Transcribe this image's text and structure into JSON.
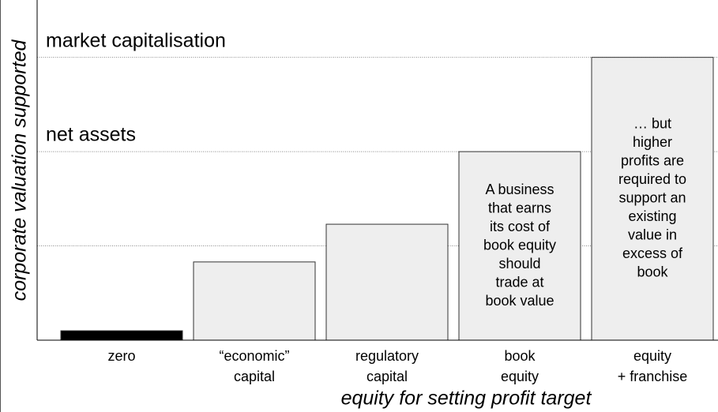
{
  "chart_data": {
    "type": "bar",
    "x_label": "equity for setting profit target",
    "y_label": "corporate valuation supported",
    "categories": [
      [
        "zero"
      ],
      [
        "“economic”",
        "capital"
      ],
      [
        "regulatory",
        "capital"
      ],
      [
        "book",
        "equity"
      ],
      [
        "equity",
        "+ franchise"
      ]
    ],
    "values": [
      0.1,
      0.83,
      1.23,
      2.0,
      3.0
    ],
    "colors": [
      "#000000",
      "#eeeeee",
      "#eeeeee",
      "#eeeeee",
      "#eeeeee"
    ],
    "bar_notes": [
      null,
      null,
      null,
      [
        "A business",
        "that earns",
        "its cost of",
        "book equity",
        "should",
        "trade at",
        "book value"
      ],
      [
        "… but",
        "higher",
        "profits are",
        "required to",
        "support an",
        "existing",
        "value in",
        "excess of",
        "book"
      ]
    ],
    "reference_lines": [
      {
        "value": 1
      },
      {
        "value": 2,
        "label": "net assets"
      },
      {
        "value": 3,
        "label": "market capitalisation"
      }
    ],
    "ylim": [
      0,
      3.6
    ]
  }
}
